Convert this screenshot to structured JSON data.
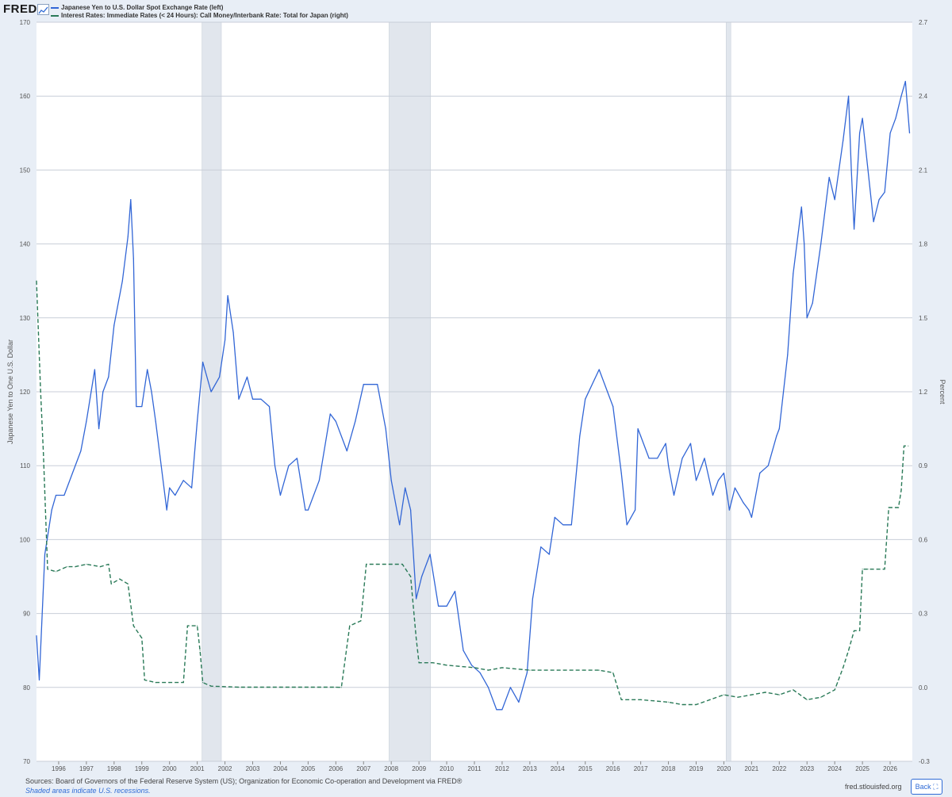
{
  "header": {
    "logo": "FRED",
    "logo_icon": "line-chart-icon"
  },
  "chart_data": {
    "type": "line",
    "legend_placement": "top-left",
    "grid": true,
    "left_axis": {
      "label": "Japanese Yen to One U.S. Dollar",
      "ylim": [
        70,
        170
      ],
      "ticks": [
        70,
        80,
        90,
        100,
        110,
        120,
        130,
        140,
        150,
        160,
        170
      ]
    },
    "right_axis": {
      "label": "Percent",
      "ylim": [
        -0.3,
        2.7
      ],
      "ticks": [
        "-0.3",
        "0.0",
        "0.3",
        "0.6",
        "0.9",
        "1.2",
        "1.5",
        "1.8",
        "2.1",
        "2.4",
        "2.7"
      ]
    },
    "xlim": [
      1995.2,
      2026.8
    ],
    "x_ticks": [
      "1996",
      "1997",
      "1998",
      "1999",
      "2000",
      "2001",
      "2002",
      "2003",
      "2004",
      "2005",
      "2006",
      "2007",
      "2008",
      "2009",
      "2010",
      "2011",
      "2012",
      "2013",
      "2014",
      "2015",
      "2016",
      "2017",
      "2018",
      "2019",
      "2020",
      "2021",
      "2022",
      "2023",
      "2024",
      "2025",
      "2026"
    ],
    "recessions": [
      [
        2001.17,
        2001.87
      ],
      [
        2007.92,
        2009.42
      ],
      [
        2020.08,
        2020.25
      ]
    ],
    "series": [
      {
        "name": "Japanese Yen to U.S. Dollar Spot Exchange Rate (left)",
        "axis": "left",
        "color": "#3266d6",
        "dash": false,
        "points": [
          [
            1995.2,
            87
          ],
          [
            1995.3,
            81
          ],
          [
            1995.5,
            98
          ],
          [
            1995.75,
            104
          ],
          [
            1995.9,
            106
          ],
          [
            1996.2,
            106
          ],
          [
            1996.5,
            109
          ],
          [
            1996.8,
            112
          ],
          [
            1997.0,
            116
          ],
          [
            1997.3,
            123
          ],
          [
            1997.45,
            115
          ],
          [
            1997.6,
            120
          ],
          [
            1997.8,
            122
          ],
          [
            1998.0,
            129
          ],
          [
            1998.3,
            135
          ],
          [
            1998.5,
            141
          ],
          [
            1998.6,
            146
          ],
          [
            1998.7,
            138
          ],
          [
            1998.8,
            118
          ],
          [
            1999.0,
            118
          ],
          [
            1999.2,
            123
          ],
          [
            1999.35,
            120
          ],
          [
            1999.5,
            116
          ],
          [
            1999.7,
            110
          ],
          [
            1999.9,
            104
          ],
          [
            2000.0,
            107
          ],
          [
            2000.2,
            106
          ],
          [
            2000.5,
            108
          ],
          [
            2000.8,
            107
          ],
          [
            2001.0,
            116
          ],
          [
            2001.2,
            124
          ],
          [
            2001.5,
            120
          ],
          [
            2001.8,
            122
          ],
          [
            2002.0,
            127
          ],
          [
            2002.1,
            133
          ],
          [
            2002.3,
            128
          ],
          [
            2002.5,
            119
          ],
          [
            2002.8,
            122
          ],
          [
            2003.0,
            119
          ],
          [
            2003.3,
            119
          ],
          [
            2003.6,
            118
          ],
          [
            2003.8,
            110
          ],
          [
            2004.0,
            106
          ],
          [
            2004.3,
            110
          ],
          [
            2004.6,
            111
          ],
          [
            2004.9,
            104
          ],
          [
            2005.0,
            104
          ],
          [
            2005.4,
            108
          ],
          [
            2005.8,
            117
          ],
          [
            2006.0,
            116
          ],
          [
            2006.4,
            112
          ],
          [
            2006.7,
            116
          ],
          [
            2007.0,
            121
          ],
          [
            2007.5,
            121
          ],
          [
            2007.8,
            115
          ],
          [
            2008.0,
            108
          ],
          [
            2008.3,
            102
          ],
          [
            2008.5,
            107
          ],
          [
            2008.7,
            104
          ],
          [
            2008.9,
            92
          ],
          [
            2009.1,
            95
          ],
          [
            2009.4,
            98
          ],
          [
            2009.7,
            91
          ],
          [
            2010.0,
            91
          ],
          [
            2010.3,
            93
          ],
          [
            2010.6,
            85
          ],
          [
            2010.9,
            83
          ],
          [
            2011.2,
            82
          ],
          [
            2011.5,
            80
          ],
          [
            2011.8,
            77
          ],
          [
            2012.0,
            77
          ],
          [
            2012.3,
            80
          ],
          [
            2012.6,
            78
          ],
          [
            2012.9,
            82
          ],
          [
            2013.1,
            92
          ],
          [
            2013.4,
            99
          ],
          [
            2013.7,
            98
          ],
          [
            2013.9,
            103
          ],
          [
            2014.2,
            102
          ],
          [
            2014.5,
            102
          ],
          [
            2014.8,
            114
          ],
          [
            2015.0,
            119
          ],
          [
            2015.5,
            123
          ],
          [
            2015.8,
            120
          ],
          [
            2016.0,
            118
          ],
          [
            2016.3,
            109
          ],
          [
            2016.5,
            102
          ],
          [
            2016.8,
            104
          ],
          [
            2016.9,
            115
          ],
          [
            2017.0,
            114
          ],
          [
            2017.3,
            111
          ],
          [
            2017.6,
            111
          ],
          [
            2017.9,
            113
          ],
          [
            2018.0,
            110
          ],
          [
            2018.2,
            106
          ],
          [
            2018.5,
            111
          ],
          [
            2018.8,
            113
          ],
          [
            2019.0,
            108
          ],
          [
            2019.3,
            111
          ],
          [
            2019.6,
            106
          ],
          [
            2019.8,
            108
          ],
          [
            2020.0,
            109
          ],
          [
            2020.2,
            104
          ],
          [
            2020.4,
            107
          ],
          [
            2020.7,
            105
          ],
          [
            2020.9,
            104
          ],
          [
            2021.0,
            103
          ],
          [
            2021.3,
            109
          ],
          [
            2021.6,
            110
          ],
          [
            2021.9,
            114
          ],
          [
            2022.0,
            115
          ],
          [
            2022.3,
            125
          ],
          [
            2022.5,
            136
          ],
          [
            2022.8,
            145
          ],
          [
            2022.9,
            140
          ],
          [
            2023.0,
            130
          ],
          [
            2023.2,
            132
          ],
          [
            2023.5,
            140
          ],
          [
            2023.8,
            149
          ],
          [
            2024.0,
            146
          ],
          [
            2024.3,
            154
          ],
          [
            2024.5,
            160
          ],
          [
            2024.6,
            150
          ],
          [
            2024.7,
            142
          ],
          [
            2024.9,
            155
          ],
          [
            2025.0,
            157
          ],
          [
            2025.2,
            150
          ],
          [
            2025.4,
            143
          ],
          [
            2025.6,
            146
          ],
          [
            2025.8,
            147
          ],
          [
            2026.0,
            155
          ],
          [
            2026.2,
            157
          ],
          [
            2026.4,
            160
          ],
          [
            2026.55,
            162
          ],
          [
            2026.7,
            155
          ]
        ]
      },
      {
        "name": "Interest Rates: Immediate Rates (< 24 Hours): Call Money/Interbank Rate: Total for Japan (right)",
        "axis": "right",
        "color": "#2a7a58",
        "dash": true,
        "points": [
          [
            1995.2,
            1.65
          ],
          [
            1995.35,
            1.2
          ],
          [
            1995.45,
            0.95
          ],
          [
            1995.6,
            0.48
          ],
          [
            1995.9,
            0.47
          ],
          [
            1996.3,
            0.49
          ],
          [
            1996.6,
            0.49
          ],
          [
            1997.0,
            0.5
          ],
          [
            1997.5,
            0.49
          ],
          [
            1997.8,
            0.5
          ],
          [
            1997.9,
            0.42
          ],
          [
            1998.2,
            0.44
          ],
          [
            1998.5,
            0.42
          ],
          [
            1998.7,
            0.25
          ],
          [
            1999.0,
            0.2
          ],
          [
            1999.1,
            0.03
          ],
          [
            1999.5,
            0.02
          ],
          [
            2000.0,
            0.02
          ],
          [
            2000.5,
            0.02
          ],
          [
            2000.65,
            0.25
          ],
          [
            2001.0,
            0.25
          ],
          [
            2001.1,
            0.15
          ],
          [
            2001.2,
            0.02
          ],
          [
            2001.5,
            0.005
          ],
          [
            2002.5,
            0.001
          ],
          [
            2004.0,
            0.001
          ],
          [
            2006.0,
            0.001
          ],
          [
            2006.2,
            0.0
          ],
          [
            2006.5,
            0.25
          ],
          [
            2006.9,
            0.27
          ],
          [
            2007.1,
            0.5
          ],
          [
            2007.5,
            0.5
          ],
          [
            2008.0,
            0.5
          ],
          [
            2008.4,
            0.5
          ],
          [
            2008.7,
            0.45
          ],
          [
            2008.9,
            0.2
          ],
          [
            2009.0,
            0.1
          ],
          [
            2009.5,
            0.1
          ],
          [
            2010.0,
            0.09
          ],
          [
            2011.0,
            0.08
          ],
          [
            2011.5,
            0.07
          ],
          [
            2012.0,
            0.08
          ],
          [
            2013.0,
            0.07
          ],
          [
            2014.0,
            0.07
          ],
          [
            2015.0,
            0.07
          ],
          [
            2015.5,
            0.07
          ],
          [
            2016.0,
            0.06
          ],
          [
            2016.3,
            -0.05
          ],
          [
            2017.0,
            -0.05
          ],
          [
            2018.0,
            -0.06
          ],
          [
            2018.5,
            -0.07
          ],
          [
            2019.0,
            -0.07
          ],
          [
            2019.5,
            -0.05
          ],
          [
            2020.0,
            -0.03
          ],
          [
            2020.5,
            -0.04
          ],
          [
            2021.0,
            -0.03
          ],
          [
            2021.5,
            -0.02
          ],
          [
            2022.0,
            -0.03
          ],
          [
            2022.5,
            -0.01
          ],
          [
            2023.0,
            -0.05
          ],
          [
            2023.5,
            -0.04
          ],
          [
            2024.0,
            -0.01
          ],
          [
            2024.1,
            0.02
          ],
          [
            2024.3,
            0.08
          ],
          [
            2024.5,
            0.15
          ],
          [
            2024.7,
            0.23
          ],
          [
            2024.9,
            0.23
          ],
          [
            2025.0,
            0.48
          ],
          [
            2025.2,
            0.48
          ],
          [
            2025.8,
            0.48
          ],
          [
            2025.95,
            0.73
          ],
          [
            2026.3,
            0.73
          ],
          [
            2026.4,
            0.8
          ],
          [
            2026.5,
            0.98
          ],
          [
            2026.65,
            0.98
          ]
        ]
      }
    ]
  },
  "footer": {
    "sources": "Sources: Board of Governors of the Federal Reserve System (US); Organization for Economic Co-operation and Development via FRED®",
    "note": "Shaded areas indicate U.S. recessions.",
    "site": "fred.stlouisfed.org",
    "back_label": "Back"
  }
}
